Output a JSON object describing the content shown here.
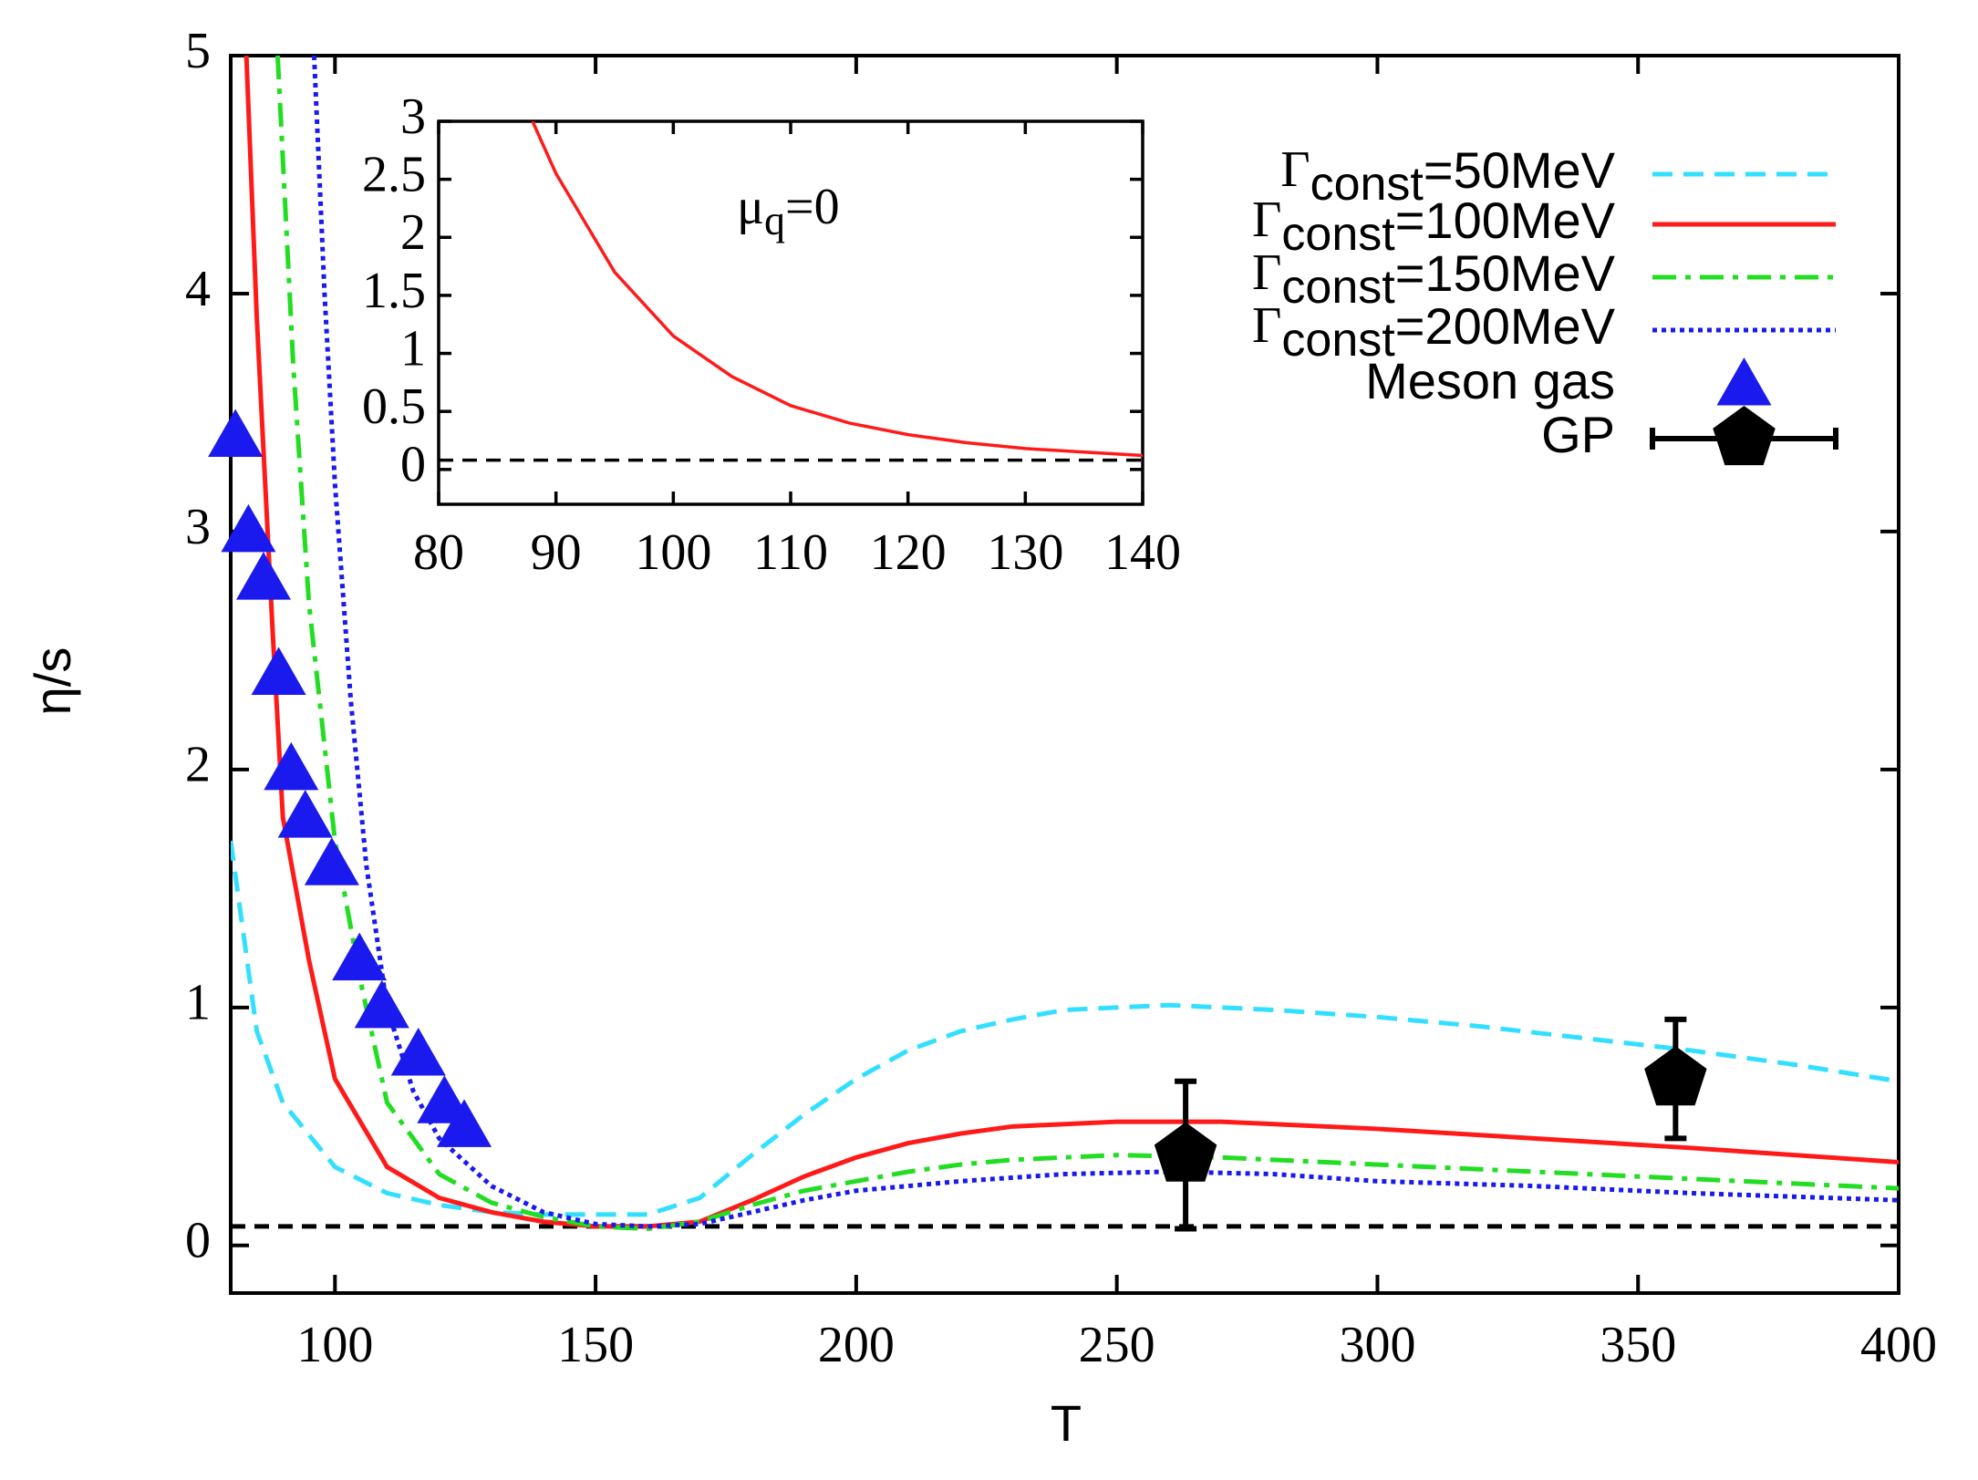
{
  "chart_data": {
    "type": "line",
    "xlabel": "T",
    "ylabel": "η/s",
    "xlim": [
      80,
      400
    ],
    "ylim": [
      -0.2,
      5
    ],
    "xticks": [
      100,
      150,
      200,
      250,
      300,
      350,
      400
    ],
    "yticks": [
      0,
      1,
      2,
      3,
      4,
      5
    ],
    "reference_line": 0.08,
    "legend": "upper right",
    "series": [
      {
        "name": [
          "Γ",
          "const",
          "=50MeV"
        ],
        "color": "#33dfff",
        "style": "dashed",
        "x": [
          80,
          85,
          90,
          100,
          110,
          120,
          130,
          140,
          150,
          160,
          170,
          180,
          190,
          200,
          210,
          220,
          230,
          240,
          250,
          260,
          270,
          280,
          300,
          320,
          340,
          360,
          380,
          400
        ],
        "values": [
          1.7,
          0.9,
          0.6,
          0.33,
          0.22,
          0.17,
          0.14,
          0.13,
          0.13,
          0.13,
          0.2,
          0.38,
          0.55,
          0.7,
          0.82,
          0.9,
          0.95,
          0.99,
          1.0,
          1.01,
          1.0,
          0.99,
          0.96,
          0.92,
          0.87,
          0.82,
          0.76,
          0.69
        ]
      },
      {
        "name": [
          "Γ",
          "const",
          "=100MeV"
        ],
        "color": "#ff1a1a",
        "style": "solid",
        "x": [
          83,
          85,
          88,
          90,
          95,
          100,
          110,
          120,
          130,
          140,
          150,
          160,
          170,
          180,
          190,
          200,
          210,
          220,
          230,
          240,
          250,
          270,
          300,
          330,
          360,
          400
        ],
        "values": [
          5,
          3.9,
          2.6,
          1.8,
          1.2,
          0.7,
          0.33,
          0.2,
          0.14,
          0.1,
          0.08,
          0.08,
          0.1,
          0.19,
          0.29,
          0.37,
          0.43,
          0.47,
          0.5,
          0.51,
          0.52,
          0.52,
          0.49,
          0.45,
          0.41,
          0.35
        ]
      },
      {
        "name": [
          "Γ",
          "const",
          "=150MeV"
        ],
        "color": "#22dd22",
        "style": "dashdot",
        "x": [
          89,
          92,
          95,
          100,
          105,
          110,
          120,
          130,
          140,
          150,
          160,
          170,
          180,
          190,
          200,
          210,
          220,
          230,
          240,
          250,
          270,
          300,
          330,
          360,
          400
        ],
        "values": [
          5,
          3.7,
          2.7,
          1.7,
          1.1,
          0.6,
          0.3,
          0.18,
          0.12,
          0.08,
          0.07,
          0.1,
          0.17,
          0.23,
          0.27,
          0.31,
          0.34,
          0.36,
          0.37,
          0.38,
          0.37,
          0.34,
          0.31,
          0.28,
          0.24
        ]
      },
      {
        "name": [
          "Γ",
          "const",
          "=200MeV"
        ],
        "color": "#1a1aee",
        "style": "dotted",
        "x": [
          96,
          98,
          100,
          103,
          106,
          110,
          115,
          120,
          130,
          140,
          150,
          160,
          170,
          180,
          190,
          200,
          220,
          240,
          260,
          280,
          300,
          330,
          360,
          400
        ],
        "values": [
          5,
          4,
          3.2,
          2.3,
          1.6,
          1.0,
          0.65,
          0.45,
          0.25,
          0.14,
          0.09,
          0.08,
          0.09,
          0.14,
          0.19,
          0.23,
          0.27,
          0.3,
          0.31,
          0.3,
          0.27,
          0.25,
          0.22,
          0.19
        ]
      }
    ],
    "points": [
      {
        "name": "Meson gas",
        "color": "#1a1aee",
        "marker": "triangle",
        "x": [
          80.9,
          83.4,
          86.3,
          89.2,
          91.6,
          94.3,
          99.4,
          104.7,
          109,
          116,
          121,
          124.8
        ],
        "values": [
          3.4,
          3.0,
          2.8,
          2.4,
          2.0,
          1.8,
          1.6,
          1.2,
          1.0,
          0.8,
          0.6,
          0.5
        ]
      },
      {
        "name": "GP",
        "color": "#000000",
        "marker": "pentagon",
        "x": [
          263.2,
          357.2
        ],
        "values": [
          0.38,
          0.7
        ],
        "errors": [
          0.31,
          0.25
        ]
      }
    ],
    "inset": {
      "type": "line",
      "annotation": [
        "μ",
        "q",
        "=0"
      ],
      "xlim": [
        80,
        140
      ],
      "ylim": [
        -0.3,
        3
      ],
      "xticks": [
        80,
        90,
        100,
        110,
        120,
        130,
        140
      ],
      "yticks": [
        0,
        0.5,
        1,
        1.5,
        2,
        2.5,
        3
      ],
      "reference_line": 0.08,
      "series": [
        {
          "color": "#ff1a1a",
          "style": "solid",
          "x": [
            88,
            90,
            95,
            100,
            105,
            110,
            115,
            120,
            125,
            130,
            135,
            140
          ],
          "values": [
            3,
            2.55,
            1.7,
            1.15,
            0.8,
            0.55,
            0.4,
            0.3,
            0.23,
            0.18,
            0.15,
            0.12
          ]
        }
      ]
    }
  }
}
